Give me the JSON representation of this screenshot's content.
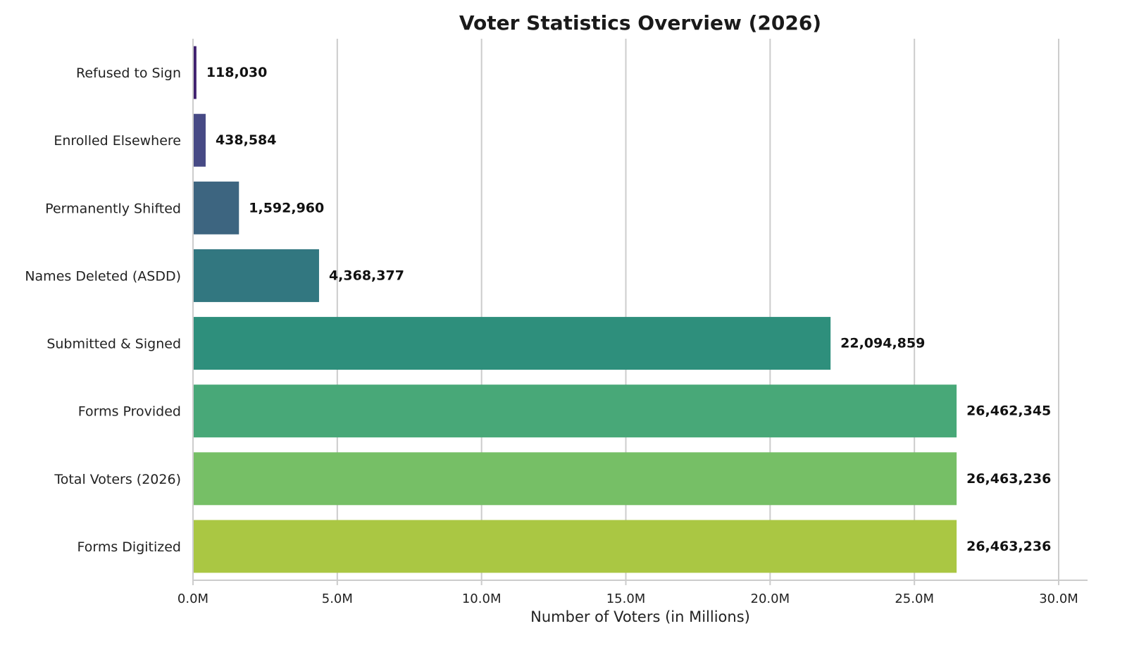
{
  "chart_data": {
    "type": "bar",
    "orientation": "horizontal",
    "title": "Voter Statistics Overview (2026)",
    "xlabel": "Number of Voters (in Millions)",
    "ylabel": "",
    "categories": [
      "Refused to Sign",
      "Enrolled Elsewhere",
      "Permanently Shifted",
      "Names Deleted (ASDD)",
      "Submitted & Signed",
      "Forms Provided",
      "Total Voters (2026)",
      "Forms Digitized"
    ],
    "values": [
      118030,
      438584,
      1592960,
      4368377,
      22094859,
      26462345,
      26463236,
      26463236
    ],
    "value_labels": [
      "118,030",
      "438,584",
      "1,592,960",
      "4,368,377",
      "22,094,859",
      "26,462,345",
      "26,463,236",
      "26,463,236"
    ],
    "colors": [
      "#3e1f6e",
      "#474a85",
      "#3d6580",
      "#327780",
      "#2e8f7c",
      "#48a878",
      "#76bf66",
      "#aac743"
    ],
    "xlim": [
      0,
      30000000
    ],
    "x_ticks": [
      0,
      5000000,
      10000000,
      15000000,
      20000000,
      25000000,
      30000000
    ],
    "x_tick_labels": [
      "0.0M",
      "5.0M",
      "10.0M",
      "15.0M",
      "20.0M",
      "25.0M",
      "30.0M"
    ],
    "grid": "vertical"
  }
}
